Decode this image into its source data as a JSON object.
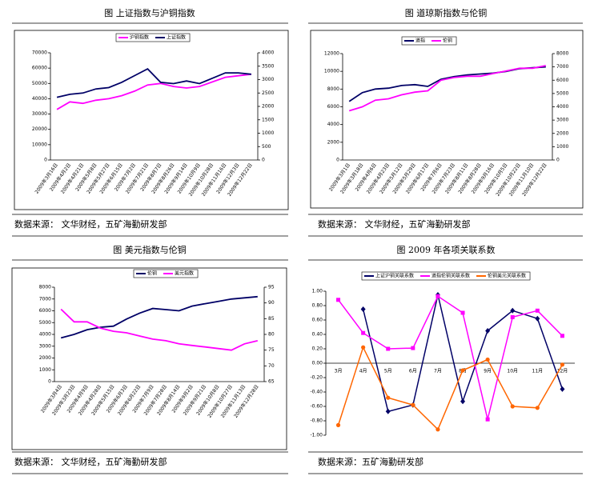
{
  "chart_data": [
    {
      "type": "line",
      "title": "图  上证指数与沪铜指数",
      "source": "数据来源：  文华财经，五矿海勤研发部",
      "categories": [
        "2009年3月16日",
        "2009年4月2日",
        "2009年4月21日",
        "2009年5月8日",
        "2009年5月27日",
        "2009年6月15日",
        "2009年7月2日",
        "2009年7月21日",
        "2009年8月7日",
        "2009年8月26日",
        "2009年9月14日",
        "2009年10月9日",
        "2009年10月28日",
        "2009年11月16日",
        "2009年12月3日",
        "2009年12月22日"
      ],
      "series": [
        {
          "name": "沪铜指数",
          "color": "#ff00ff",
          "values": [
            33000,
            38000,
            37000,
            39000,
            40000,
            42000,
            45000,
            49000,
            50000,
            48000,
            47000,
            48000,
            51000,
            54000,
            55000,
            56000
          ]
        },
        {
          "name": "上证指数",
          "color": "#000066",
          "axis": "y2",
          "values": [
            2340,
            2450,
            2500,
            2650,
            2700,
            2900,
            3150,
            3400,
            2900,
            2850,
            2950,
            2850,
            3050,
            3250,
            3250,
            3200
          ]
        }
      ],
      "ylim": [
        0,
        70000
      ],
      "yticks": [
        0,
        10000,
        20000,
        30000,
        40000,
        50000,
        60000,
        70000
      ],
      "y2lim": [
        0,
        4000
      ],
      "y2ticks": [
        0,
        500,
        1000,
        1500,
        2000,
        2500,
        3000,
        3500,
        4000
      ]
    },
    {
      "type": "line",
      "title": "图    道琼斯指数与伦铜",
      "source": "数据来源：   文华财经，五矿海勤研发部",
      "categories": [
        "2009年3月1日",
        "2009年3月18日",
        "2009年4月6日",
        "2009年4月23日",
        "2009年5月12日",
        "2009年5月29日",
        "2009年6月17日",
        "2009年7月6日",
        "2009年7月23日",
        "2009年8月11日",
        "2009年8月28日",
        "2009年9月16日",
        "2009年10月5日",
        "2009年10月22日",
        "2009年11月10日",
        "2009年12月22日"
      ],
      "series": [
        {
          "name": "道指",
          "color": "#000066",
          "values": [
            6600,
            7600,
            8000,
            8100,
            8400,
            8500,
            8300,
            9100,
            9400,
            9600,
            9700,
            9800,
            10000,
            10300,
            10400,
            10500
          ]
        },
        {
          "name": "伦铜",
          "color": "#ff00ff",
          "axis": "y2",
          "values": [
            3700,
            4000,
            4500,
            4600,
            4900,
            5100,
            5200,
            6000,
            6200,
            6300,
            6300,
            6500,
            6700,
            6900,
            6900,
            7100
          ]
        }
      ],
      "ylim": [
        0,
        12000
      ],
      "yticks": [
        0,
        2000,
        4000,
        6000,
        8000,
        10000,
        12000
      ],
      "y2lim": [
        0,
        8000
      ],
      "y2ticks": [
        0,
        1000,
        2000,
        3000,
        4000,
        5000,
        6000,
        7000,
        8000
      ]
    },
    {
      "type": "line",
      "title": "图  美元指数与伦铜",
      "source": "数据来源：  文华财经，五矿海勤研发部",
      "categories": [
        "2009年3月4日",
        "2009年3月23日",
        "2009年4月9日",
        "2009年4月28日",
        "2009年5月15日",
        "2009年6月3日",
        "2009年6月22日",
        "2009年7月9日",
        "2009年7月28日",
        "2009年8月14日",
        "2009年9月2日",
        "2009年9月21日",
        "2009年10月8日",
        "2009年10月27日",
        "2009年11月13日",
        "2009年12月28日"
      ],
      "series": [
        {
          "name": "伦铜",
          "color": "#000066",
          "values": [
            3700,
            4000,
            4400,
            4600,
            4700,
            5300,
            5800,
            6200,
            6100,
            6000,
            6400,
            6600,
            6800,
            7000,
            7100,
            7200
          ]
        },
        {
          "name": "美元指数",
          "color": "#ff00ff",
          "axis": "y2",
          "values": [
            88,
            84,
            84,
            82,
            81,
            80.5,
            79.5,
            78.5,
            78,
            77,
            76.5,
            76,
            75.5,
            75,
            77,
            78
          ]
        }
      ],
      "ylim": [
        0,
        8000
      ],
      "yticks": [
        0,
        1000,
        2000,
        3000,
        4000,
        5000,
        6000,
        7000,
        8000
      ],
      "y2lim": [
        65,
        95
      ],
      "y2ticks": [
        65,
        70,
        75,
        80,
        85,
        90,
        95
      ]
    },
    {
      "type": "line",
      "title": "图    2009 年各项关联系数",
      "source": "数据来源：五矿海勤研发部",
      "markers": true,
      "categories": [
        "3月",
        "4月",
        "5月",
        "6月",
        "7月",
        "8月",
        "9月",
        "10月",
        "11月",
        "12月"
      ],
      "series": [
        {
          "name": "上证沪铜关联系数",
          "color": "#000066",
          "marker": "diamond",
          "values": [
            null,
            0.75,
            -0.67,
            -0.58,
            0.95,
            -0.53,
            0.45,
            0.73,
            0.62,
            -0.36
          ]
        },
        {
          "name": "道指伦铜关联系数",
          "color": "#ff00ff",
          "marker": "square",
          "values": [
            0.88,
            0.42,
            0.2,
            0.21,
            0.93,
            0.7,
            -0.78,
            0.64,
            0.73,
            0.38
          ]
        },
        {
          "name": "伦铜美元关联系数",
          "color": "#ff6600",
          "marker": "circle",
          "values": [
            -0.86,
            0.22,
            -0.48,
            -0.58,
            -0.92,
            -0.1,
            0.05,
            -0.6,
            -0.62,
            -0.02
          ]
        }
      ],
      "ylim": [
        -1,
        1
      ],
      "yticks": [
        {
          "value": -1,
          "label": "-1.00"
        },
        {
          "value": -0.8,
          "label": "-0.80"
        },
        {
          "value": -0.6,
          "label": "-0.60"
        },
        {
          "value": -0.4,
          "label": "-0.40"
        },
        {
          "value": -0.2,
          "label": "-0.20"
        },
        {
          "value": 0,
          "label": "0.00"
        },
        {
          "value": 0.2,
          "label": "0.20"
        },
        {
          "value": 0.4,
          "label": "0.40"
        },
        {
          "value": 0.6,
          "label": "0.60"
        },
        {
          "value": 0.8,
          "label": "0.80"
        },
        {
          "value": 1,
          "label": "1.00"
        }
      ]
    }
  ]
}
